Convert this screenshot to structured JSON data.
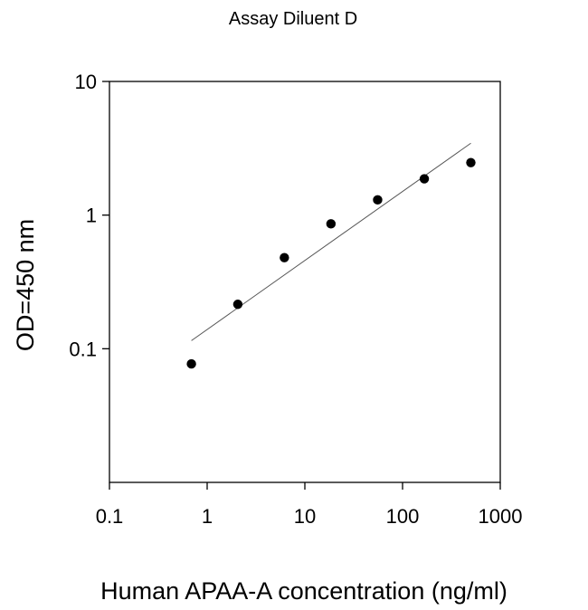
{
  "chart_data": {
    "type": "scatter",
    "title": "Assay Diluent D",
    "xlabel": "Human APAA-A concentration (ng/ml)",
    "ylabel": "OD=450 nm",
    "xscale": "log",
    "yscale": "log",
    "xlim": [
      0.1,
      1000
    ],
    "ylim": [
      0.01,
      10
    ],
    "x_ticks": [
      {
        "value": 0.1,
        "label": "0.1"
      },
      {
        "value": 1,
        "label": "1"
      },
      {
        "value": 10,
        "label": "10"
      },
      {
        "value": 100,
        "label": "100"
      },
      {
        "value": 1000,
        "label": "1000"
      }
    ],
    "y_ticks": [
      {
        "value": 0.1,
        "label": "0.1"
      },
      {
        "value": 1,
        "label": "1"
      },
      {
        "value": 10,
        "label": "10"
      }
    ],
    "grid": false,
    "legend": "none",
    "series": [
      {
        "type": "scatter",
        "color": "#000000",
        "points": [
          {
            "x": 0.69,
            "y": 0.077
          },
          {
            "x": 2.06,
            "y": 0.215
          },
          {
            "x": 6.17,
            "y": 0.48
          },
          {
            "x": 18.5,
            "y": 0.86
          },
          {
            "x": 55.6,
            "y": 1.3
          },
          {
            "x": 167,
            "y": 1.87
          },
          {
            "x": 500,
            "y": 2.47
          }
        ]
      },
      {
        "type": "line",
        "name_hidden": true,
        "color": "#555555",
        "points": [
          {
            "x": 0.69,
            "y": 0.115
          },
          {
            "x": 500,
            "y": 3.45
          }
        ]
      }
    ]
  }
}
